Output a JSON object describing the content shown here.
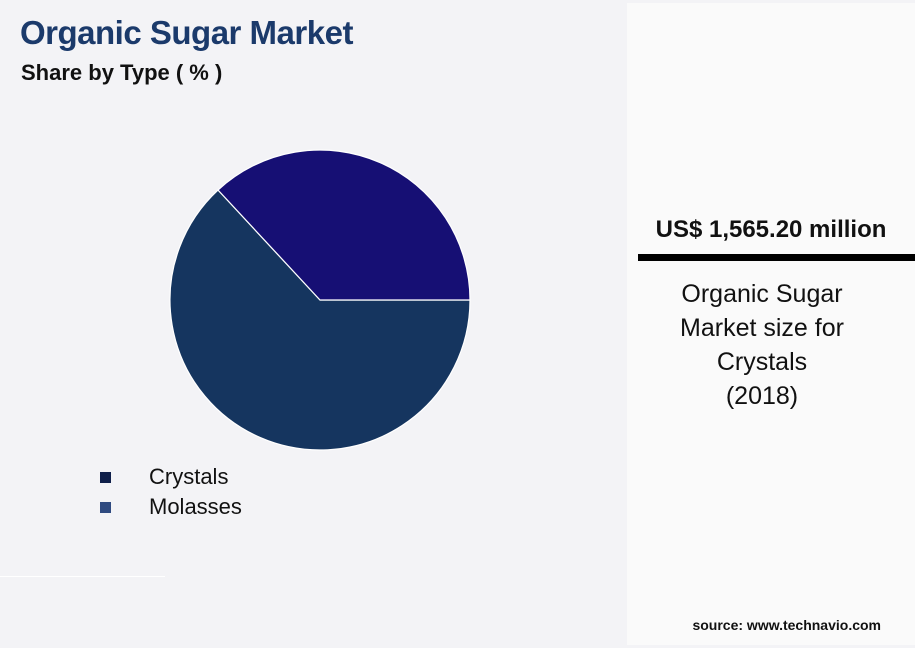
{
  "chart_data": {
    "type": "pie",
    "title": "Organic Sugar Market",
    "subtitle": "Share by Type ( % )",
    "categories": [
      "Crystals",
      "Molasses"
    ],
    "values": [
      63.1,
      36.9
    ],
    "slice_colors": [
      "#15355f",
      "#160f74"
    ],
    "legend_colors": [
      "#0f1f4a",
      "#2f4a80"
    ],
    "legend_placement": "bottom-left"
  },
  "panel": {
    "value": "US$ 1,565.20 million",
    "description_lines": [
      "Organic Sugar",
      "Market size for",
      "Crystals",
      "(2018)"
    ],
    "source": "source: www.technavio.com"
  }
}
